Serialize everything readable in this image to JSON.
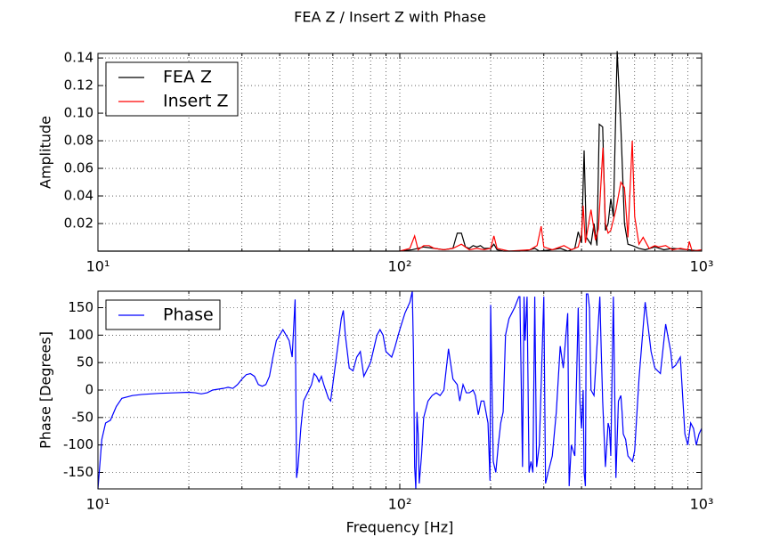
{
  "chart_data": [
    {
      "type": "line",
      "title": "FEA Z / Insert Z with Phase",
      "ylabel": "Amplitude",
      "xscale": "log",
      "xlim": [
        10,
        1000
      ],
      "xticks": [
        {
          "value": 10,
          "label": "10¹"
        },
        {
          "value": 100,
          "label": "10²"
        },
        {
          "value": 1000,
          "label": "10³"
        }
      ],
      "xminorticks": [
        20,
        30,
        40,
        50,
        60,
        70,
        80,
        90,
        200,
        300,
        400,
        500,
        600,
        700,
        800,
        900
      ],
      "ylim": [
        0,
        0.1433
      ],
      "yticks": [
        0.02,
        0.04,
        0.06,
        0.08,
        {
          "value": 0.1,
          "label": "0.10"
        },
        0.12,
        0.14
      ],
      "grid": true,
      "legend": "upper left",
      "series": [
        {
          "name": "FEA Z",
          "color": "#000000",
          "x": [
            10,
            100,
            110,
            120,
            130,
            140,
            150,
            155,
            160,
            165,
            170,
            175,
            180,
            185,
            190,
            200,
            205,
            210,
            220,
            250,
            270,
            280,
            290,
            320,
            340,
            360,
            380,
            390,
            400,
            408,
            415,
            430,
            440,
            450,
            458,
            470,
            480,
            490,
            500,
            510,
            525,
            540,
            555,
            570,
            590,
            620,
            650,
            700,
            750,
            800,
            900,
            1000
          ],
          "values": [
            0,
            0,
            0.001,
            0.003,
            0.002,
            0.001,
            0.002,
            0.013,
            0.013,
            0.003,
            0.002,
            0.004,
            0.003,
            0.004,
            0.002,
            0.002,
            0.005,
            0.001,
            0,
            0,
            0.001,
            0.002,
            0,
            0.001,
            0.002,
            0,
            0.002,
            0.014,
            0.006,
            0.073,
            0.01,
            0.005,
            0.02,
            0.004,
            0.092,
            0.09,
            0.015,
            0.02,
            0.038,
            0.025,
            0.145,
            0.09,
            0.02,
            0.005,
            0.004,
            0.002,
            0.001,
            0.003,
            0.001,
            0.002,
            0.001,
            0
          ]
        },
        {
          "name": "Insert Z",
          "color": "#ff0000",
          "x": [
            100,
            108,
            112,
            115,
            120,
            125,
            130,
            140,
            150,
            160,
            170,
            180,
            190,
            200,
            205,
            210,
            230,
            270,
            285,
            294,
            300,
            320,
            350,
            370,
            390,
            400,
            405,
            412,
            430,
            445,
            455,
            471,
            480,
            490,
            500,
            520,
            540,
            555,
            570,
            589,
            600,
            620,
            640,
            670,
            700,
            720,
            760,
            800,
            850,
            900,
            910,
            930,
            1000
          ],
          "values": [
            0,
            0.002,
            0.011,
            0.001,
            0.004,
            0.004,
            0.002,
            0.001,
            0.002,
            0.005,
            0.001,
            0.002,
            0.001,
            0.002,
            0.011,
            0.002,
            0,
            0.001,
            0.004,
            0.018,
            0.003,
            0.001,
            0.004,
            0.001,
            0.003,
            0.012,
            0.033,
            0.006,
            0.03,
            0.008,
            0.016,
            0.075,
            0.02,
            0.013,
            0.015,
            0.03,
            0.05,
            0.046,
            0.01,
            0.08,
            0.025,
            0.005,
            0.01,
            0.002,
            0.004,
            0.003,
            0.004,
            0.001,
            0.002,
            0.001,
            0.007,
            0,
            0.001
          ]
        }
      ]
    },
    {
      "type": "line",
      "ylabel": "Phase [Degrees]",
      "xlabel": "Frequency [Hz]",
      "xscale": "log",
      "xlim": [
        10,
        1000
      ],
      "xticks": [
        {
          "value": 10,
          "label": "10¹"
        },
        {
          "value": 100,
          "label": "10²"
        },
        {
          "value": 1000,
          "label": "10³"
        }
      ],
      "xminorticks": [
        20,
        30,
        40,
        50,
        60,
        70,
        80,
        90,
        200,
        300,
        400,
        500,
        600,
        700,
        800,
        900
      ],
      "ylim": [
        -180,
        180
      ],
      "yticks": [
        -150,
        -100,
        -50,
        0,
        50,
        100,
        150
      ],
      "grid": true,
      "legend": "upper left",
      "series": [
        {
          "name": "Phase",
          "color": "#0000ff",
          "x": [
            10,
            10.3,
            10.6,
            11,
            11.5,
            12,
            13,
            14,
            16,
            18,
            20,
            21,
            22,
            23,
            24,
            26,
            27,
            28,
            29,
            30,
            31,
            32,
            33,
            34,
            35,
            36,
            37,
            38,
            39,
            40,
            41,
            42,
            43,
            44,
            45,
            45.5,
            46,
            47,
            48,
            50,
            51,
            52,
            53,
            54,
            55,
            56,
            58,
            59,
            62,
            64,
            65,
            66,
            68,
            70,
            72,
            74,
            76,
            80,
            84,
            86,
            88,
            90,
            94,
            96,
            100,
            104,
            108,
            110,
            111,
            112,
            113,
            114,
            115,
            116,
            118,
            120,
            124,
            128,
            132,
            136,
            138,
            140,
            145,
            150,
            155,
            158,
            162,
            166,
            170,
            175,
            178,
            182,
            186,
            190,
            196,
            199,
            200,
            204,
            208,
            212,
            216,
            220,
            224,
            230,
            240,
            248,
            250,
            255,
            258,
            260,
            264,
            268,
            272,
            276,
            280,
            284,
            290,
            300,
            304,
            310,
            320,
            330,
            340,
            348,
            360,
            364,
            370,
            380,
            390,
            395,
            400,
            405,
            408,
            412,
            415,
            420,
            425,
            430,
            440,
            450,
            460,
            465,
            470,
            480,
            490,
            495,
            500,
            510,
            520,
            530,
            540,
            545,
            550,
            560,
            570,
            590,
            600,
            620,
            650,
            680,
            700,
            730,
            760,
            790,
            800,
            820,
            850,
            880,
            900,
            920,
            940,
            960,
            980,
            1000
          ],
          "values": [
            -180,
            -90,
            -60,
            -55,
            -30,
            -15,
            -10,
            -8,
            -6,
            -5,
            -4,
            -5,
            -7,
            -5,
            0,
            3,
            5,
            3,
            10,
            20,
            28,
            30,
            25,
            10,
            7,
            10,
            25,
            60,
            90,
            100,
            110,
            100,
            90,
            60,
            165,
            -160,
            -140,
            -70,
            -20,
            0,
            10,
            30,
            25,
            15,
            25,
            10,
            -15,
            -20,
            70,
            130,
            145,
            100,
            40,
            35,
            60,
            70,
            25,
            50,
            100,
            110,
            100,
            70,
            60,
            75,
            110,
            140,
            160,
            180,
            70,
            -140,
            -180,
            -40,
            -80,
            -170,
            -120,
            -50,
            -20,
            -10,
            -5,
            -10,
            -5,
            0,
            75,
            20,
            10,
            -20,
            10,
            -5,
            -5,
            0,
            -10,
            -45,
            -20,
            -20,
            -60,
            -165,
            155,
            -130,
            -150,
            -100,
            -60,
            -40,
            100,
            130,
            150,
            170,
            170,
            -140,
            170,
            90,
            170,
            -150,
            -130,
            -150,
            170,
            -140,
            -100,
            170,
            -170,
            -150,
            -120,
            -40,
            80,
            40,
            140,
            -175,
            -100,
            -120,
            150,
            -20,
            -70,
            0,
            -150,
            -175,
            175,
            175,
            150,
            0,
            -10,
            80,
            170,
            70,
            -20,
            -140,
            -60,
            -70,
            -120,
            170,
            -160,
            -20,
            -10,
            -40,
            -80,
            -90,
            -120,
            -130,
            -110,
            20,
            160,
            70,
            40,
            30,
            120,
            70,
            40,
            45,
            60,
            -80,
            -100,
            -60,
            -70,
            -100,
            -80,
            -70
          ]
        }
      ]
    }
  ]
}
